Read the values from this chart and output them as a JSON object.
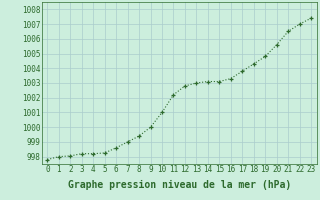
{
  "x": [
    0,
    1,
    2,
    3,
    4,
    5,
    6,
    7,
    8,
    9,
    10,
    11,
    12,
    13,
    14,
    15,
    16,
    17,
    18,
    19,
    20,
    21,
    22,
    23
  ],
  "y": [
    997.8,
    998.0,
    998.05,
    998.2,
    998.2,
    998.25,
    998.6,
    999.0,
    999.4,
    1000.0,
    1001.0,
    1002.2,
    1002.8,
    1003.0,
    1003.1,
    1003.1,
    1003.3,
    1003.8,
    1004.3,
    1004.8,
    1005.6,
    1006.5,
    1007.0,
    1007.4
  ],
  "line_color": "#2d6a2d",
  "background_color": "#cceedd",
  "grid_color": "#aacccc",
  "xlabel": "Graphe pression niveau de la mer (hPa)",
  "xlabel_fontsize": 7,
  "ylim": [
    997.5,
    1008.5
  ],
  "yticks": [
    998,
    999,
    1000,
    1001,
    1002,
    1003,
    1004,
    1005,
    1006,
    1007,
    1008
  ],
  "xticks": [
    0,
    1,
    2,
    3,
    4,
    5,
    6,
    7,
    8,
    9,
    10,
    11,
    12,
    13,
    14,
    15,
    16,
    17,
    18,
    19,
    20,
    21,
    22,
    23
  ],
  "tick_fontsize": 5.5,
  "line_width": 0.8,
  "marker_size": 3.5
}
